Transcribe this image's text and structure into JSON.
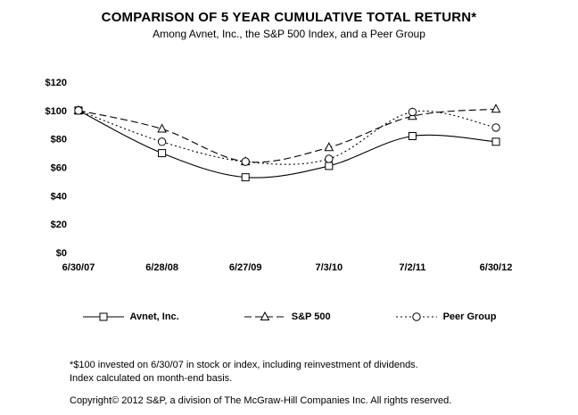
{
  "title": "COMPARISON OF 5 YEAR CUMULATIVE TOTAL RETURN*",
  "subtitle": "Among Avnet, Inc., the S&P 500 Index, and a Peer Group",
  "footnotes": {
    "line1": "*$100 invested on 6/30/07 in stock or index, including reinvestment of dividends.",
    "line2": "Index calculated on month-end basis."
  },
  "copyright": "Copyright© 2012 S&P, a division of The McGraw-Hill Companies Inc. All rights reserved.",
  "chart_data": {
    "type": "line",
    "title": "COMPARISON OF 5 YEAR CUMULATIVE TOTAL RETURN*",
    "subtitle": "Among Avnet, Inc., the S&P 500 Index, and a Peer Group",
    "x": [
      "6/30/07",
      "6/28/08",
      "6/27/09",
      "7/3/10",
      "7/2/11",
      "6/30/12"
    ],
    "series": [
      {
        "name": "Avnet, Inc.",
        "marker": "square",
        "dash": "solid",
        "values": [
          100,
          70,
          53,
          61,
          82,
          78
        ]
      },
      {
        "name": "S&P 500",
        "marker": "triangle",
        "dash": "dashed",
        "values": [
          100,
          87,
          64,
          74,
          96,
          101
        ]
      },
      {
        "name": "Peer Group",
        "marker": "circle",
        "dash": "dashdot",
        "values": [
          100,
          78,
          64,
          66,
          99,
          88
        ]
      }
    ],
    "xlabel": "",
    "ylabel": "",
    "ylim": [
      0,
      120
    ],
    "ytick_step": 20,
    "ytick_labels": [
      "$0",
      "$20",
      "$40",
      "$60",
      "$80",
      "$100",
      "$120"
    ],
    "grid": false,
    "legend_position": "bottom",
    "line_color": "#000000",
    "marker_fill": "#ffffff"
  }
}
